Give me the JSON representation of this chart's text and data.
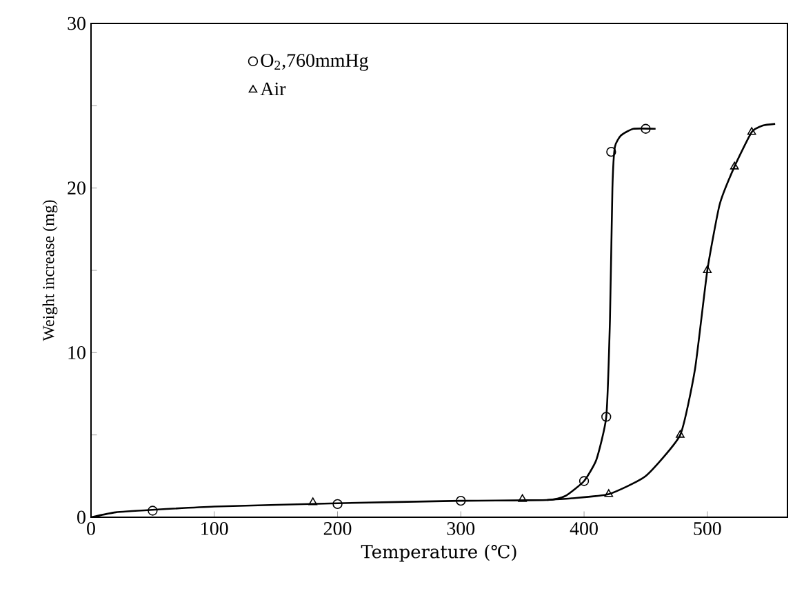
{
  "chart_data": {
    "type": "scatter",
    "xlabel": "Temperature (℃)",
    "ylabel": "Weight increase (mg)",
    "xlim": [
      0,
      565
    ],
    "xticks": [
      0,
      100,
      200,
      300,
      400,
      500
    ],
    "ylim": [
      0,
      30
    ],
    "yticks": [
      0,
      {
        "value": 5,
        "label": null
      },
      10,
      {
        "value": 15,
        "label": null
      },
      20,
      {
        "value": 25,
        "label": null
      },
      30
    ],
    "grid": false,
    "legend": "top left",
    "series": [
      {
        "name": "O$_{2}$,760mmHg",
        "color": "#000000",
        "marker": "circle",
        "x": [
          50,
          200,
          300,
          400,
          418,
          422,
          450
        ],
        "values": [
          0.4,
          0.8,
          1.0,
          2.2,
          6.1,
          22.2,
          23.6
        ]
      },
      {
        "name": "Air",
        "color": "#000000",
        "marker": "triangle",
        "x": [
          180,
          350,
          420,
          478,
          500,
          522,
          536
        ],
        "values": [
          0.9,
          1.1,
          1.4,
          5.0,
          15.0,
          21.3,
          23.4
        ]
      },
      {
        "type": "line",
        "color": "#000000",
        "marker": "none",
        "x": [
          0,
          20,
          50,
          100,
          200,
          300,
          370,
          385,
          400,
          410,
          418,
          421,
          423,
          425,
          430,
          440,
          458
        ],
        "values": [
          0,
          0.3,
          0.45,
          0.65,
          0.85,
          1.0,
          1.05,
          1.3,
          2.2,
          3.5,
          6.1,
          12,
          20,
          22.5,
          23.2,
          23.6,
          23.6
        ]
      },
      {
        "type": "line",
        "color": "#000000",
        "marker": "none",
        "x": [
          370,
          390,
          420,
          450,
          478,
          490,
          500,
          510,
          522,
          536,
          545,
          555
        ],
        "values": [
          1.05,
          1.15,
          1.4,
          2.5,
          5.0,
          9.0,
          15.0,
          19.0,
          21.3,
          23.4,
          23.8,
          23.9
        ]
      }
    ]
  }
}
